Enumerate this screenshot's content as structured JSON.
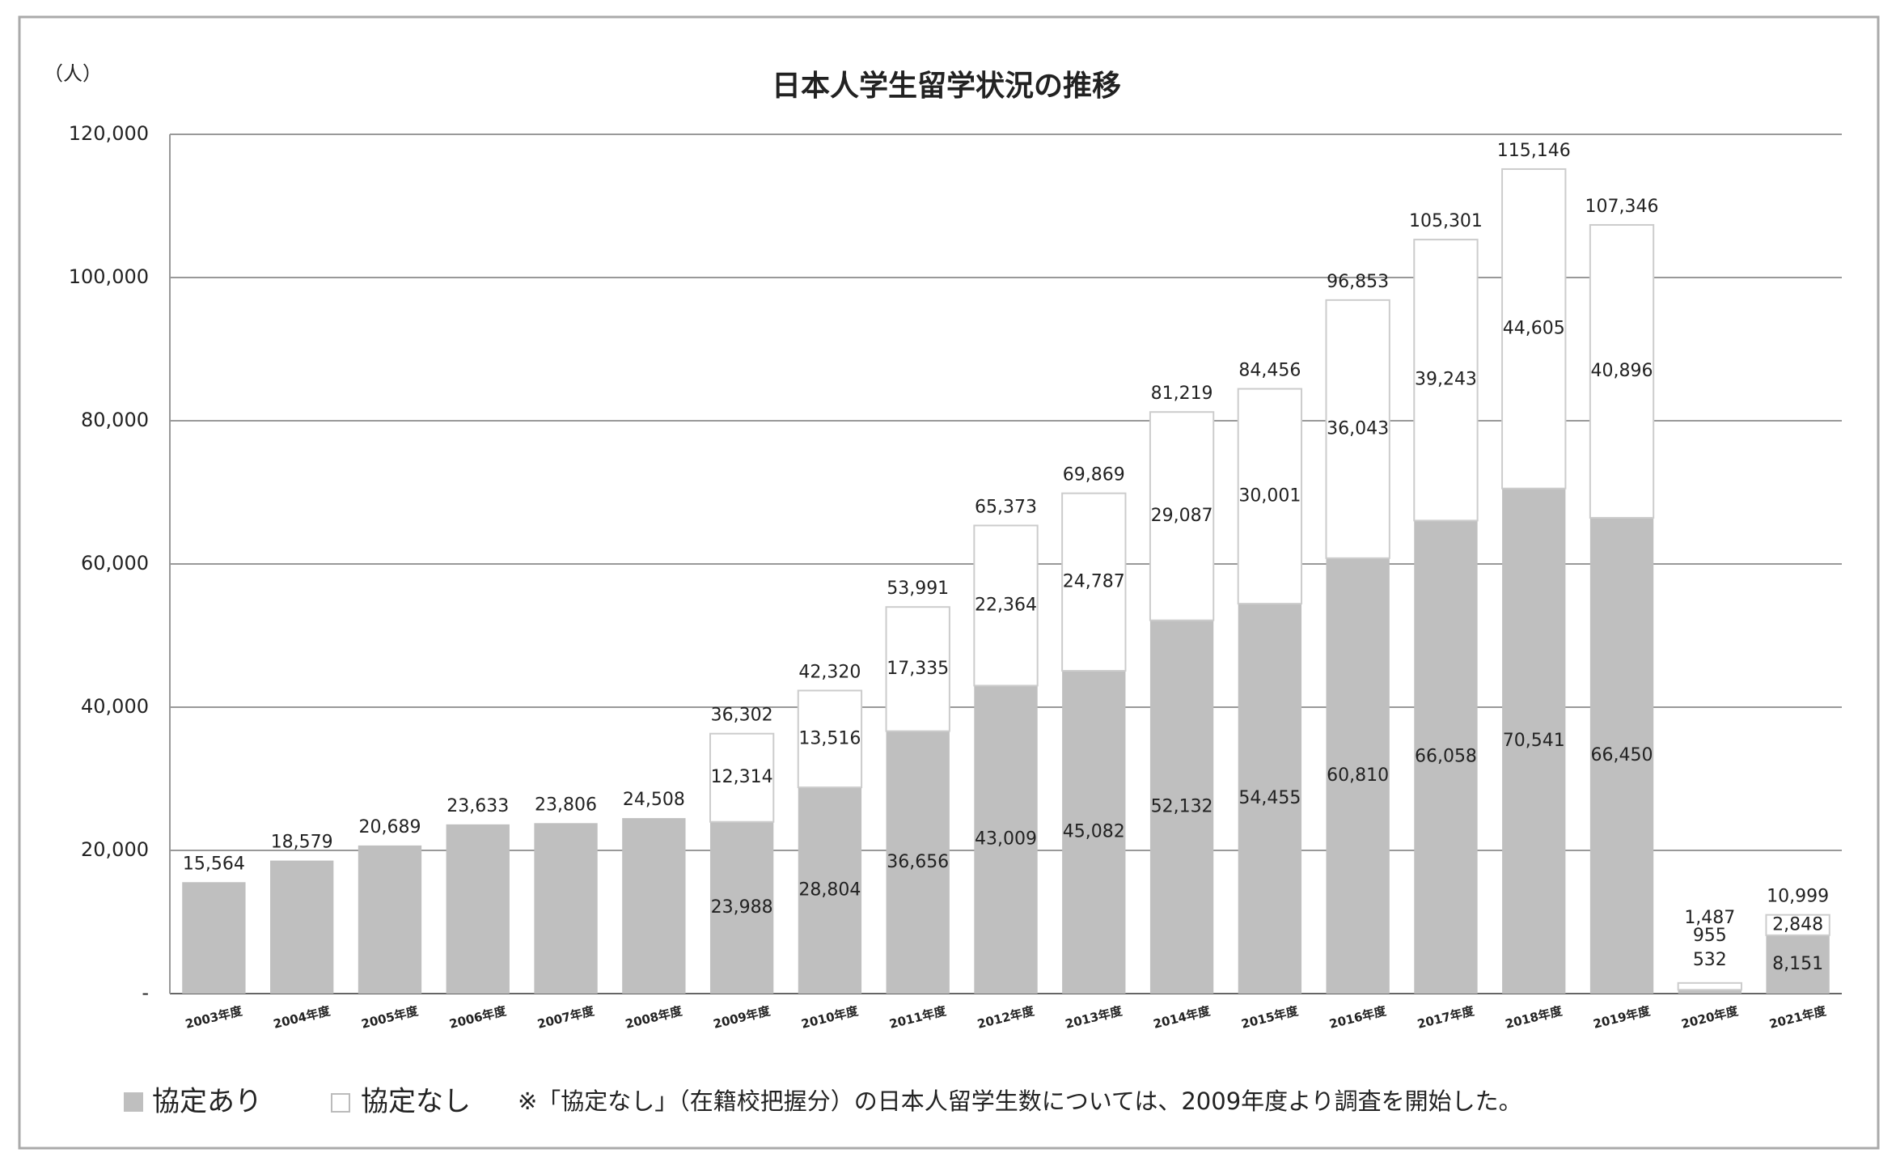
{
  "chart_data": {
    "type": "stacked_bar",
    "title": "日本人学生留学状況の推移",
    "y_unit_label": "（人）",
    "note": "※「協定なし」（在籍校把握分）の日本人留学生数については、2009年度より調査を開始した。",
    "categories": [
      "2003年度",
      "2004年度",
      "2005年度",
      "2006年度",
      "2007年度",
      "2008年度",
      "2009年度",
      "2010年度",
      "2011年度",
      "2012年度",
      "2013年度",
      "2014年度",
      "2015年度",
      "2016年度",
      "2017年度",
      "2018年度",
      "2019年度",
      "2020年度",
      "2021年度"
    ],
    "series": [
      {
        "name": "協定あり",
        "color": "#bfbfbf",
        "values": [
          15564,
          18579,
          20689,
          23633,
          23806,
          24508,
          23988,
          28804,
          36656,
          43009,
          45082,
          52132,
          54455,
          60810,
          66058,
          70541,
          66450,
          532,
          8151
        ],
        "value_labels": [
          "15,564",
          "18,579",
          "20,689",
          "23,633",
          "23,806",
          "24,508",
          "23,988",
          "28,804",
          "36,656",
          "43,009",
          "45,082",
          "52,132",
          "54,455",
          "60,810",
          "66,058",
          "70,541",
          "66,450",
          "532",
          "8,151"
        ]
      },
      {
        "name": "協定なし",
        "color": "#ffffff",
        "values": [
          null,
          null,
          null,
          null,
          null,
          null,
          12314,
          13516,
          17335,
          22364,
          24787,
          29087,
          30001,
          36043,
          39243,
          44605,
          40896,
          955,
          2848
        ],
        "value_labels": [
          null,
          null,
          null,
          null,
          null,
          null,
          "12,314",
          "13,516",
          "17,335",
          "22,364",
          "24,787",
          "29,087",
          "30,001",
          "36,043",
          "39,243",
          "44,605",
          "40,896",
          "955",
          "2,848"
        ]
      }
    ],
    "totals": {
      "values": [
        null,
        null,
        null,
        null,
        null,
        null,
        36302,
        42320,
        53991,
        65373,
        69869,
        81219,
        84456,
        96853,
        105301,
        115146,
        107346,
        1487,
        10999
      ],
      "value_labels": [
        null,
        null,
        null,
        null,
        null,
        null,
        "36,302",
        "42,320",
        "53,991",
        "65,373",
        "69,869",
        "81,219",
        "84,456",
        "96,853",
        "105,301",
        "115,146",
        "107,346",
        "1,487",
        "10,999"
      ]
    },
    "ylim": [
      0,
      120000
    ],
    "yticks": [
      {
        "value": 0,
        "label": "-"
      },
      {
        "value": 20000,
        "label": "20,000"
      },
      {
        "value": 40000,
        "label": "40,000"
      },
      {
        "value": 60000,
        "label": "60,000"
      },
      {
        "value": 80000,
        "label": "80,000"
      },
      {
        "value": 100000,
        "label": "100,000"
      },
      {
        "value": 120000,
        "label": "120,000"
      }
    ],
    "grid": true
  }
}
